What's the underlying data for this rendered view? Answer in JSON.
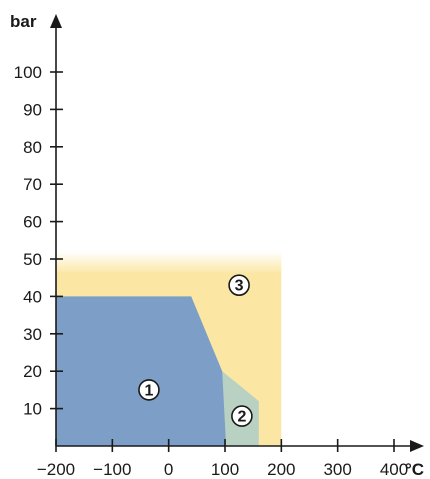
{
  "chart_data": {
    "type": "area",
    "title": "",
    "xlabel": "",
    "x_unit": "°C",
    "y_unit": "bar",
    "xlim": [
      -200,
      400
    ],
    "ylim": [
      0,
      100
    ],
    "x_ticks": [
      -200,
      -100,
      0,
      100,
      200,
      300,
      400
    ],
    "x_tick_labels": [
      "−200",
      "−100",
      "0",
      "100",
      "200",
      "300",
      "400"
    ],
    "y_ticks": [
      10,
      20,
      30,
      40,
      50,
      60,
      70,
      80,
      90,
      100
    ],
    "y_tick_labels": [
      "10",
      "20",
      "30",
      "40",
      "50",
      "60",
      "70",
      "80",
      "90",
      "100"
    ],
    "grid": false,
    "legend": "none",
    "regions": [
      {
        "label": "3",
        "color": "#fbe7a3",
        "points": [
          [
            -200,
            0
          ],
          [
            -200,
            52
          ],
          [
            200,
            52
          ],
          [
            200,
            0
          ]
        ],
        "label_at": [
          125,
          43
        ]
      },
      {
        "label": "2",
        "color": "#b9d1c2",
        "points": [
          [
            95,
            0
          ],
          [
            95,
            20
          ],
          [
            160,
            12
          ],
          [
            160,
            0
          ]
        ],
        "label_at": [
          130,
          8
        ]
      },
      {
        "label": "1",
        "color": "#7d9ec6",
        "points": [
          [
            -200,
            0
          ],
          [
            -200,
            40
          ],
          [
            40,
            40
          ],
          [
            95,
            20
          ],
          [
            102,
            0
          ]
        ],
        "label_at": [
          -35,
          15
        ]
      }
    ]
  }
}
